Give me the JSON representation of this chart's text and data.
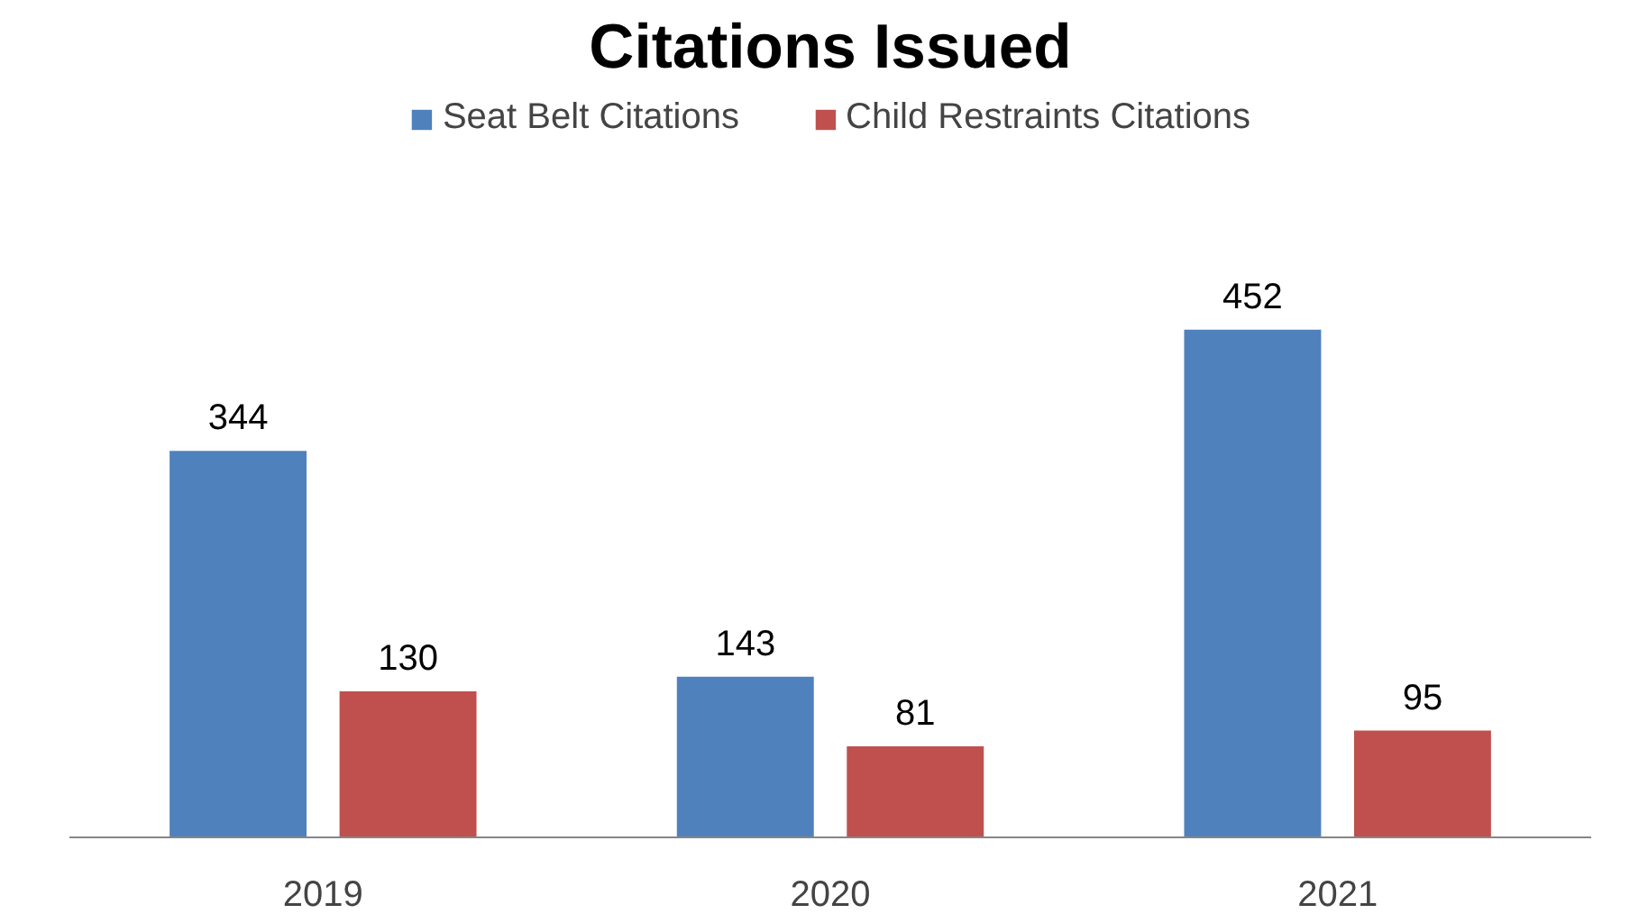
{
  "chart_data": {
    "type": "bar",
    "title": "Citations Issued",
    "categories": [
      "2019",
      "2020",
      "2021"
    ],
    "series": [
      {
        "name": "Seat Belt Citations",
        "color": "#4f81bd",
        "values": [
          344,
          143,
          452
        ]
      },
      {
        "name": "Child Restraints Citations",
        "color": "#c0504d",
        "values": [
          130,
          81,
          95
        ]
      }
    ],
    "data_labels": true,
    "legend": "top",
    "tick_labels": "x"
  }
}
